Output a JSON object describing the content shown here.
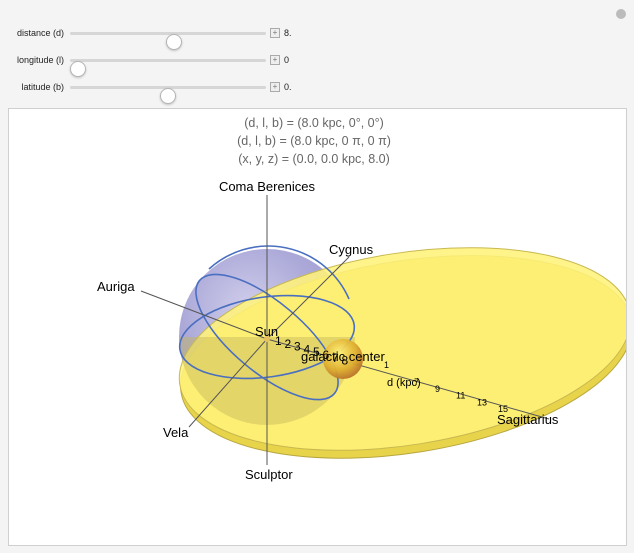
{
  "controls": [
    {
      "label": "distance (d)",
      "value": "8."
    },
    {
      "label": "longitude (l)",
      "value": "0"
    },
    {
      "label": "latitude (b)",
      "value": "0."
    }
  ],
  "info": [
    "(d, l, b) = (8.0 kpc, 0°, 0°)",
    "(d, l, b) = (8.0 kpc, 0 π, 0 π)",
    "(x, y, z) = (0.0, 0.0 kpc, 8.0)"
  ],
  "labels": {
    "north": "Coma Berenices",
    "cygnus": "Cygnus",
    "auriga": "Auriga",
    "sun": "Sun",
    "center": "galactic center",
    "axis": "d (kpc)",
    "vela": "Vela",
    "south": "Sculptor",
    "sagittarius": "Sagittarius"
  },
  "near_ticks": [
    "1",
    "2",
    "3",
    "4",
    "5",
    "6",
    "7",
    "8"
  ],
  "far_ticks": [
    "1",
    "7",
    "9",
    "11",
    "13",
    "15"
  ]
}
